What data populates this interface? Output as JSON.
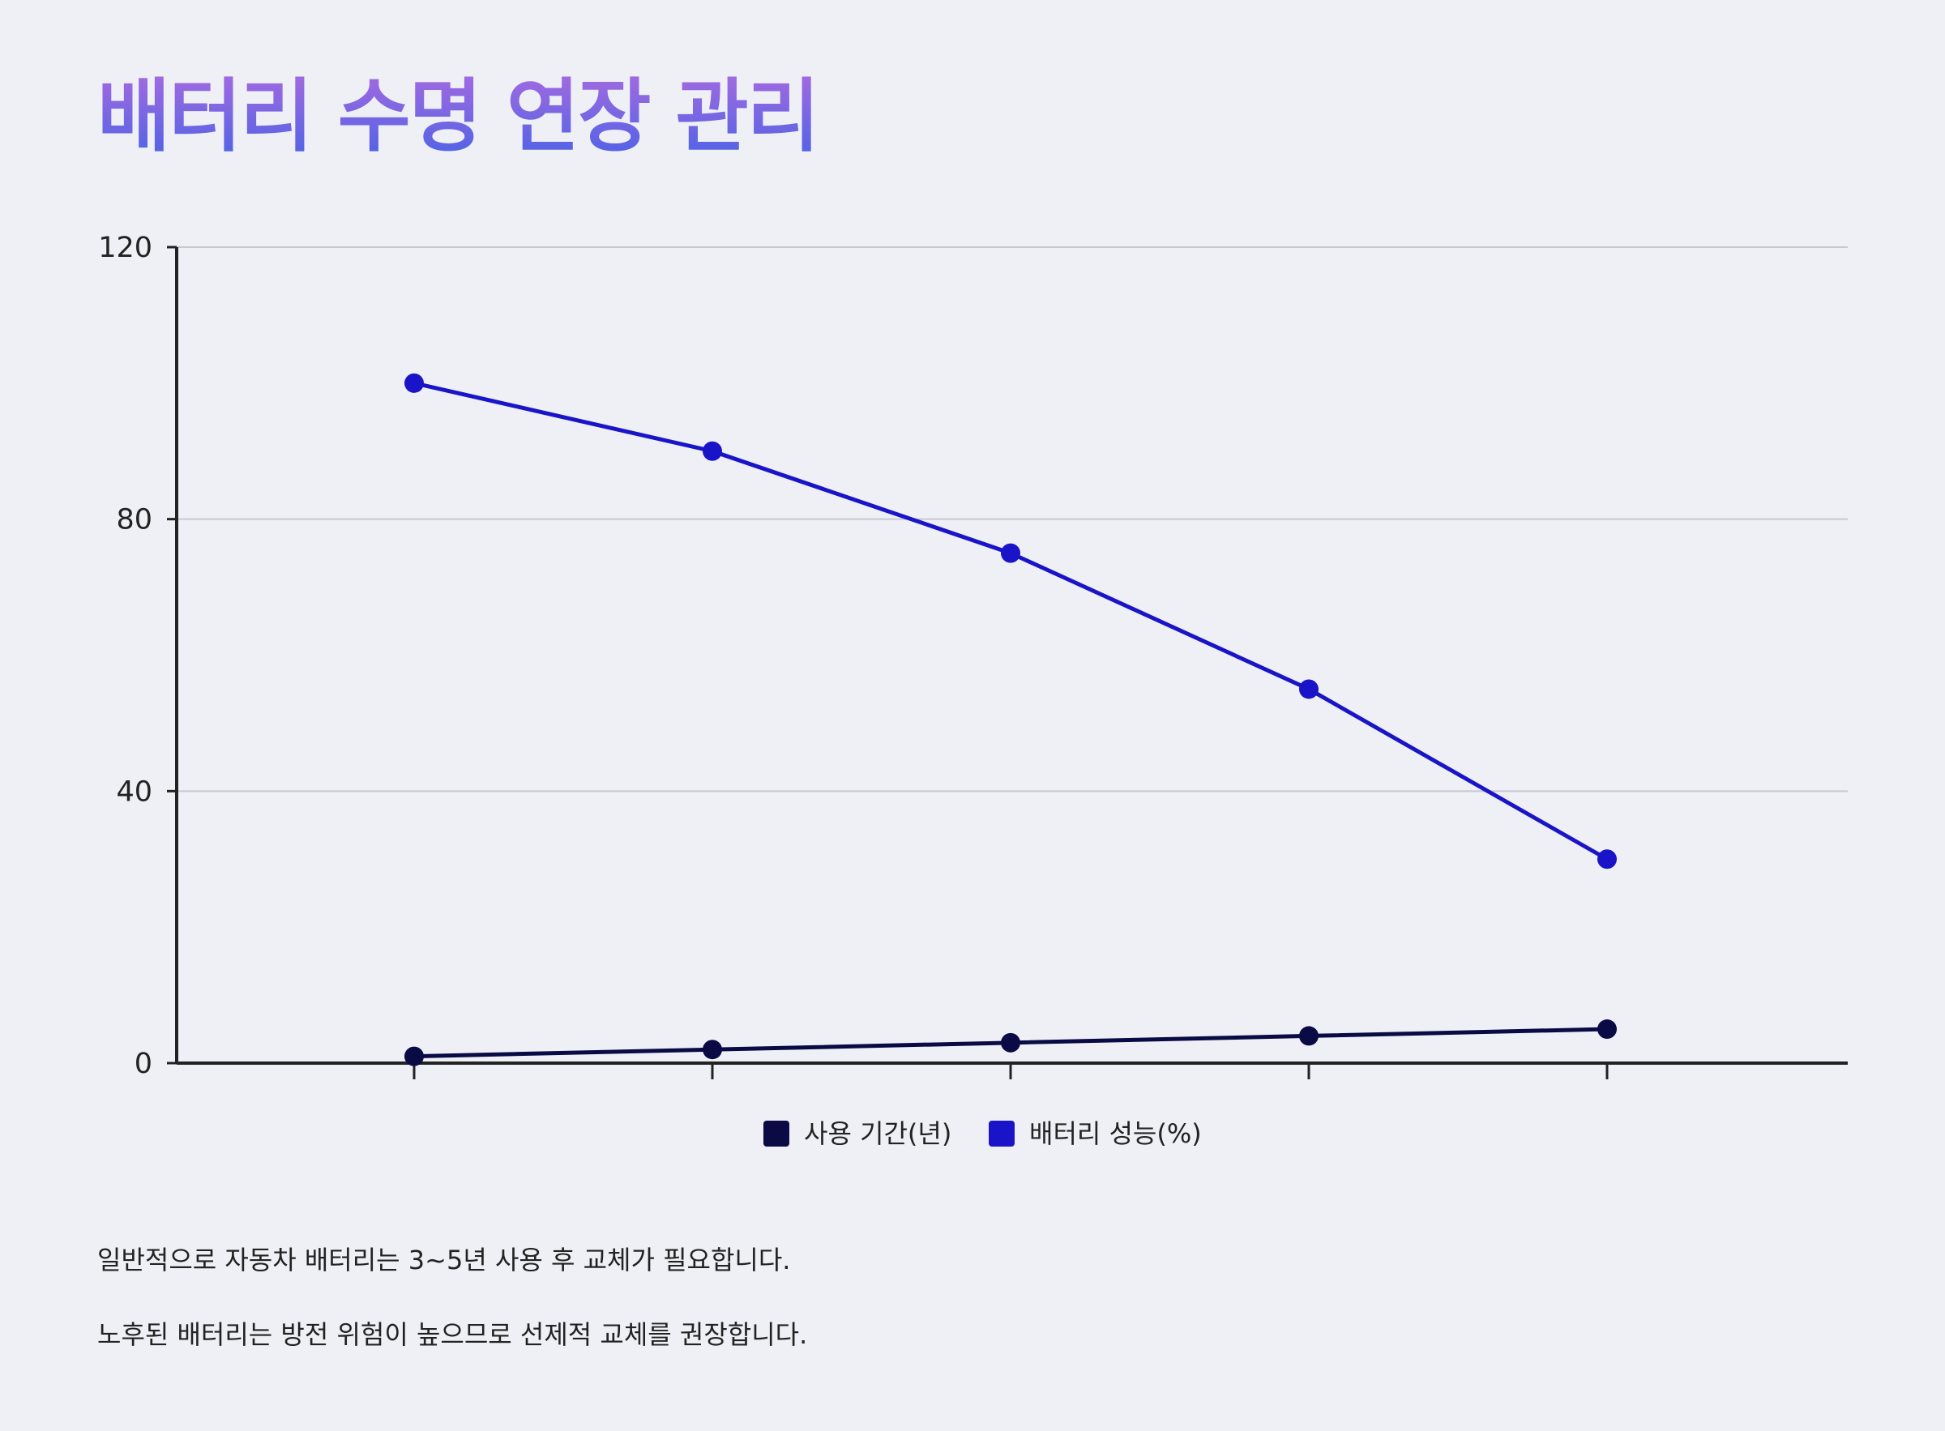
{
  "chart_data": {
    "type": "line",
    "title": "배터리 수명 연장 관리",
    "categories": [
      "",
      "",
      "",
      "",
      ""
    ],
    "series": [
      {
        "name": "사용 기간(년)",
        "color": "#0a0a45",
        "values": [
          1,
          2,
          3,
          4,
          5
        ]
      },
      {
        "name": "배터리 성능(%)",
        "color": "#1a14c8",
        "values": [
          100,
          90,
          75,
          55,
          30
        ]
      }
    ],
    "ylim": [
      0,
      120
    ],
    "yticks": [
      0,
      40,
      80,
      120
    ],
    "grid": true,
    "legend": "bottom",
    "notes": [
      "일반적으로 자동차 배터리는 3~5년 사용 후 교체가 필요합니다.",
      "노후된 배터리는 방전 위험이 높으므로 선제적 교체를 권장합니다."
    ]
  }
}
